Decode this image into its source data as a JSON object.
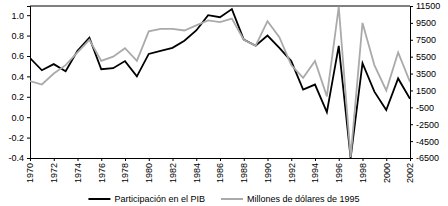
{
  "chart_data": {
    "type": "line",
    "x": [
      1970,
      1971,
      1972,
      1973,
      1974,
      1975,
      1976,
      1977,
      1978,
      1979,
      1980,
      1981,
      1982,
      1983,
      1984,
      1985,
      1986,
      1987,
      1988,
      1989,
      1990,
      1991,
      1992,
      1993,
      1994,
      1995,
      1996,
      1997,
      1998,
      1999,
      2000,
      2001,
      2002
    ],
    "xlim": [
      1970,
      2002
    ],
    "xticks": [
      1970,
      1972,
      1974,
      1976,
      1978,
      1980,
      1982,
      1984,
      1986,
      1988,
      1990,
      1992,
      1994,
      1996,
      1998,
      2000,
      2002
    ],
    "ylim": [
      -0.4,
      1.09
    ],
    "yticks": [
      -0.4,
      -0.2,
      {
        "value": 0,
        "label": "0.0"
      },
      0.2,
      0.4,
      0.6,
      0.8,
      {
        "value": 1,
        "label": "1.0"
      }
    ],
    "y2lim": [
      -6500,
      11500
    ],
    "y2ticks": [
      -6500,
      -4500,
      -2500,
      -500,
      1500,
      3500,
      5500,
      7500,
      9500,
      11500
    ],
    "legend": "bottom",
    "series": [
      {
        "name": "Participación en el PIB",
        "color": "#000000",
        "values": [
          0.58,
          0.46,
          0.52,
          0.45,
          0.65,
          0.78,
          0.47,
          0.48,
          0.55,
          0.4,
          0.62,
          0.65,
          0.68,
          0.75,
          0.85,
          1.0,
          0.98,
          1.06,
          0.76,
          0.7,
          0.8,
          0.68,
          0.55,
          0.27,
          0.32,
          0.05,
          0.7,
          -0.4,
          0.53,
          0.25,
          0.07,
          0.38,
          0.18
        ]
      },
      {
        "name": "Millones de dólares de 1995",
        "color": "#aaaaaa",
        "axis": "y2",
        "values": [
          2600,
          2200,
          3500,
          4500,
          6000,
          7500,
          5000,
          5500,
          6500,
          5000,
          8500,
          8800,
          8800,
          8600,
          9200,
          9800,
          9600,
          10000,
          7500,
          6800,
          9700,
          7800,
          4500,
          3000,
          5000,
          800,
          11400,
          -6400,
          9500,
          4500,
          1500,
          6000,
          2500
        ]
      }
    ]
  }
}
